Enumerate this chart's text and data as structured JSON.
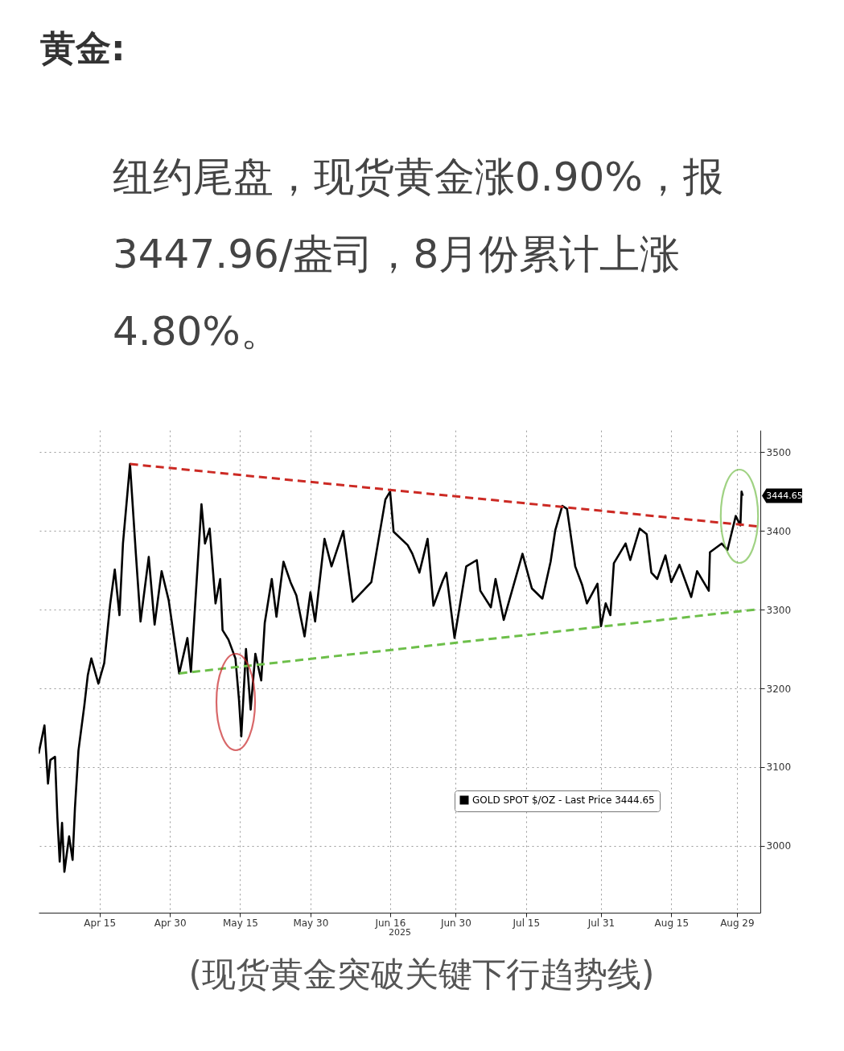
{
  "chart_data": {
    "type": "line",
    "title": "黄金:",
    "subtitle": "纽约尾盘，现货黄金涨0.90%，报3447.96/盎司，8月份累计上涨4.80%。",
    "xlabel": "2025",
    "annotations": [
      "3444.65",
      "(现货黄金突破关键下行趋势线)"
    ],
    "series": [
      {
        "name": "GOLD SPOT $/OZ - Last Price 3444.65",
        "color": "#000000",
        "line_style": "solid",
        "x": [
          "2025-04-02T00:00",
          "2025-04-03T06:00",
          "2025-04-04T00:00",
          "2025-04-04T12:00",
          "2025-04-05T12:00",
          "2025-04-06T00:00",
          "2025-04-06T12:00",
          "2025-04-07T00:00",
          "2025-04-07T12:00",
          "2025-04-08T12:00",
          "2025-04-09T06:00",
          "2025-04-09T18:00",
          "2025-04-10T12:00",
          "2025-04-11T18:00",
          "2025-04-12T12:00",
          "2025-04-13T06:00",
          "2025-04-14T18:00",
          "2025-04-16T00:00",
          "2025-04-17T06:00",
          "2025-04-18T06:00",
          "2025-04-19T06:00",
          "2025-04-20T00:00",
          "2025-04-21T12:00",
          "2025-04-22T18:00",
          "2025-04-23T18:00",
          "2025-04-25T12:00",
          "2025-04-26T18:00",
          "2025-04-28T06:00",
          "2025-04-29T18:00",
          "2025-05-02T00:00",
          "2025-05-03T18:00",
          "2025-05-04T12:00",
          "2025-05-06T18:00",
          "2025-05-07T12:00",
          "2025-05-08T12:00",
          "2025-05-09T18:00",
          "2025-05-10T18:00",
          "2025-05-11T06:00",
          "2025-05-12T12:00",
          "2025-05-14T00:00",
          "2025-05-14T18:00",
          "2025-05-15T06:00",
          "2025-05-16T06:00",
          "2025-05-17T06:00",
          "2025-05-18T06:00",
          "2025-05-19T12:00",
          "2025-05-20T06:00",
          "2025-05-21T18:00",
          "2025-05-22T18:00",
          "2025-05-24T06:00",
          "2025-05-25T18:00",
          "2025-05-27T00:00",
          "2025-05-28T18:00",
          "2025-05-30T00:00",
          "2025-05-31T00:00",
          "2025-06-02T00:00",
          "2025-06-03T12:00",
          "2025-06-06T00:00",
          "2025-06-08T00:00",
          "2025-06-12T00:00",
          "2025-06-15T00:00",
          "2025-06-16T00:00",
          "2025-06-16T18:00",
          "2025-06-19T18:00",
          "2025-06-20T18:00",
          "2025-06-22T06:00",
          "2025-06-24T00:00",
          "2025-06-25T06:00",
          "2025-06-27T06:00",
          "2025-06-28T00:00",
          "2025-06-29T18:00",
          "2025-07-02T06:00",
          "2025-07-04T12:00",
          "2025-07-05T06:00",
          "2025-07-07T12:00",
          "2025-07-08T12:00",
          "2025-07-10T06:00",
          "2025-07-14T06:00",
          "2025-07-16T06:00",
          "2025-07-18T12:00",
          "2025-07-20T06:00",
          "2025-07-21T06:00",
          "2025-07-22T18:00",
          "2025-07-23T18:00",
          "2025-07-25T12:00",
          "2025-07-27T00:00",
          "2025-07-28T00:00",
          "2025-07-30T06:00",
          "2025-07-31T00:00",
          "2025-08-01T00:00",
          "2025-08-02T00:00",
          "2025-08-02T18:00",
          "2025-08-05T06:00",
          "2025-08-06T06:00",
          "2025-08-08T06:00",
          "2025-08-09T18:00",
          "2025-08-10T18:00",
          "2025-08-12T00:00",
          "2025-08-13T18:00",
          "2025-08-15T00:00",
          "2025-08-16T18:00",
          "2025-08-19T06:00",
          "2025-08-20T12:00",
          "2025-08-23T00:00",
          "2025-08-23T06:00",
          "2025-08-25T18:00",
          "2025-08-27T00:00",
          "2025-08-28T18:00",
          "2025-08-29T18:00",
          "2025-08-30T00:00",
          "2025-08-30T06:00"
        ],
        "values": [
          3117,
          3153,
          3079,
          3109,
          3113,
          3036,
          2980,
          3029,
          2967,
          3012,
          2982,
          3048,
          3121,
          3178,
          3217,
          3238,
          3206,
          3232,
          3306,
          3351,
          3293,
          3384,
          3485,
          3371,
          3285,
          3367,
          3281,
          3349,
          3312,
          3219,
          3264,
          3221,
          3434,
          3384,
          3403,
          3308,
          3339,
          3274,
          3262,
          3238,
          3186,
          3139,
          3250,
          3173,
          3244,
          3210,
          3283,
          3339,
          3291,
          3361,
          3335,
          3318,
          3266,
          3322,
          3285,
          3390,
          3355,
          3400,
          3310,
          3335,
          3440,
          3450,
          3399,
          3382,
          3371,
          3347,
          3390,
          3305,
          3337,
          3347,
          3264,
          3355,
          3363,
          3324,
          3303,
          3339,
          3287,
          3371,
          3327,
          3314,
          3361,
          3401,
          3432,
          3428,
          3355,
          3331,
          3308,
          3333,
          3279,
          3308,
          3293,
          3359,
          3384,
          3363,
          3403,
          3396,
          3347,
          3339,
          3369,
          3335,
          3357,
          3316,
          3349,
          3324,
          3373,
          3384,
          3376,
          3419,
          3407,
          3450,
          3444.65
        ]
      },
      {
        "type": "line",
        "color": "#cc2a24",
        "line_style": "dashed",
        "x": [
          "2025-04-21T12:00",
          "2025-09-02T06:00"
        ],
        "values": [
          3485,
          3406
        ]
      },
      {
        "type": "line",
        "color": "#6dbf4a",
        "line_style": "dashed",
        "x": [
          "2025-05-02T00:00",
          "2025-09-01T18:00"
        ],
        "values": [
          3219,
          3300
        ]
      }
    ],
    "xlim": [
      "2025-04-02T00:00",
      "2025-09-03T00:00"
    ],
    "xticks": [
      {
        "value": "2025-04-15",
        "label": "Apr 15"
      },
      {
        "value": "2025-04-30",
        "label": "Apr 30"
      },
      {
        "value": "2025-05-15",
        "label": "May 15"
      },
      {
        "value": "2025-05-30",
        "label": "May 30"
      },
      {
        "value": "2025-06-16",
        "label": "Jun 16"
      },
      {
        "value": "2025-06-30",
        "label": "Jun 30"
      },
      {
        "value": "2025-07-15",
        "label": "Jul 15"
      },
      {
        "value": "2025-07-31",
        "label": "Jul 31"
      },
      {
        "value": "2025-08-15",
        "label": "Aug 15"
      },
      {
        "value": "2025-08-29",
        "label": "Aug 29"
      }
    ],
    "ylim": [
      2915,
      3528
    ],
    "yticks": [
      3000,
      3100,
      3200,
      3300,
      3400,
      3500
    ],
    "grid": true,
    "legend": "bottom"
  }
}
